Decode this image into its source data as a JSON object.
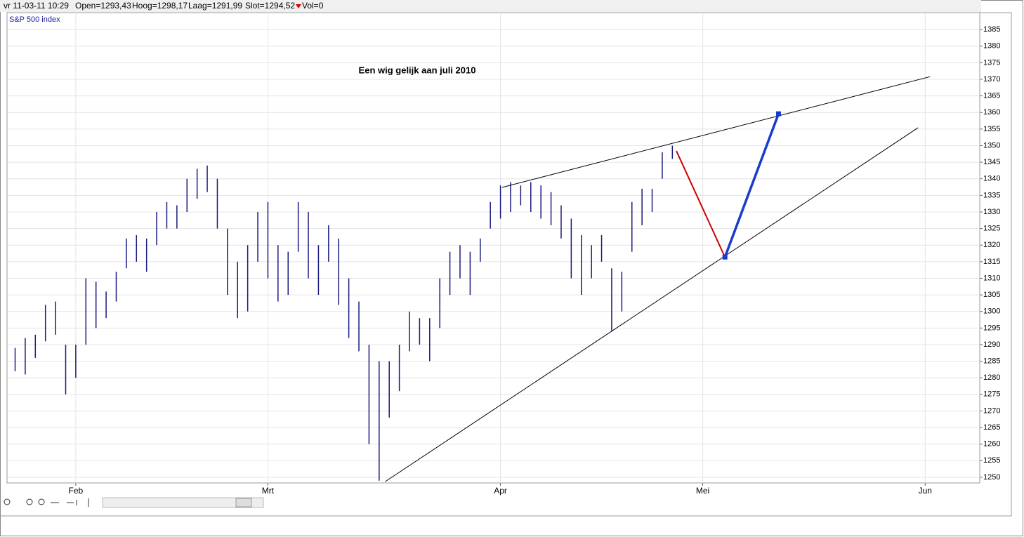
{
  "chart_data": {
    "type": "ohlc",
    "header": {
      "date": "vr 11-03-11 10:29",
      "open": "Open=1293,43",
      "high": "Hoog=1298,17",
      "low": "Laag=1291,99",
      "close": "Slot=1294,52",
      "volume": "Vol=0"
    },
    "index_label": "S&P 500 index",
    "annotation": "Een wig gelijk aan juli 2010",
    "xlim": [
      -6.8,
      89.4
    ],
    "xticks": [
      {
        "value": 0,
        "label": "Feb"
      },
      {
        "value": 19,
        "label": "Mrt"
      },
      {
        "value": 42,
        "label": "Apr"
      },
      {
        "value": 62,
        "label": "Mei"
      },
      {
        "value": 84,
        "label": "Jun"
      }
    ],
    "ylim": [
      1248.3,
      1390.1
    ],
    "yticks": [
      1250,
      1255,
      1260,
      1265,
      1270,
      1275,
      1280,
      1285,
      1290,
      1295,
      1300,
      1305,
      1310,
      1315,
      1320,
      1325,
      1330,
      1335,
      1340,
      1345,
      1350,
      1355,
      1360,
      1365,
      1370,
      1375,
      1380,
      1385
    ],
    "grid": true,
    "color": "#1a1a80",
    "x": [
      -6,
      -5,
      -4,
      -3,
      -2,
      -1,
      0,
      1,
      2,
      3,
      4,
      5,
      6,
      7,
      8,
      9,
      10,
      11,
      12,
      13,
      14,
      15,
      16,
      17,
      18,
      19,
      20,
      21,
      22,
      23,
      24,
      25,
      26,
      27,
      28,
      29,
      30,
      31,
      32,
      33,
      34,
      35,
      36,
      37,
      38,
      39,
      40,
      41,
      42,
      43,
      44,
      45,
      46,
      47,
      48,
      49,
      50,
      51,
      52,
      53,
      54,
      55,
      56,
      57,
      58,
      59
    ],
    "low": [
      1282,
      1281,
      1286,
      1291,
      1293,
      1275,
      1280,
      1290,
      1295,
      1298,
      1303,
      1313,
      1315,
      1312,
      1320,
      1325,
      1325,
      1330,
      1334,
      1336,
      1325,
      1305,
      1298,
      1300,
      1315,
      1310,
      1303,
      1305,
      1318,
      1310,
      1305,
      1315,
      1302,
      1292,
      1288,
      1260,
      1249,
      1268,
      1276,
      1288,
      1290,
      1285,
      1295,
      1305,
      1310,
      1305,
      1315,
      1325,
      1328,
      1330,
      1332,
      1330,
      1328,
      1326,
      1322,
      1310,
      1305,
      1310,
      1315,
      1294,
      1300,
      1318,
      1326,
      1330,
      1340,
      1346
    ],
    "high": [
      1289,
      1292,
      1293,
      1302,
      1303,
      1290,
      1290,
      1310,
      1309,
      1306,
      1312,
      1322,
      1323,
      1322,
      1330,
      1333,
      1332,
      1340,
      1343,
      1344,
      1340,
      1325,
      1315,
      1320,
      1330,
      1333,
      1320,
      1318,
      1333,
      1330,
      1320,
      1326,
      1322,
      1310,
      1303,
      1290,
      1285,
      1285,
      1290,
      1300,
      1298,
      1298,
      1310,
      1318,
      1320,
      1318,
      1322,
      1333,
      1338,
      1339,
      1338,
      1339,
      1338,
      1336,
      1332,
      1328,
      1323,
      1320,
      1323,
      1313,
      1312,
      1333,
      1337,
      1337,
      1348,
      1350
    ],
    "lines": [
      {
        "x": [
          42.15,
          84.5
        ],
        "y": [
          1337.4,
          1370.8
        ],
        "color": "#000000",
        "width": 1
      },
      {
        "x": [
          30.6,
          83.3
        ],
        "y": [
          1248.7,
          1355.4
        ],
        "color": "#000000",
        "width": 1
      },
      {
        "x": [
          59.4,
          64.2
        ],
        "y": [
          1348.4,
          1316.4
        ],
        "color": "#cc0000",
        "width": 2
      },
      {
        "x": [
          64.2,
          69.5
        ],
        "y": [
          1316.4,
          1359.6
        ],
        "color": "#1a3ccc",
        "width": 3.5
      }
    ]
  }
}
